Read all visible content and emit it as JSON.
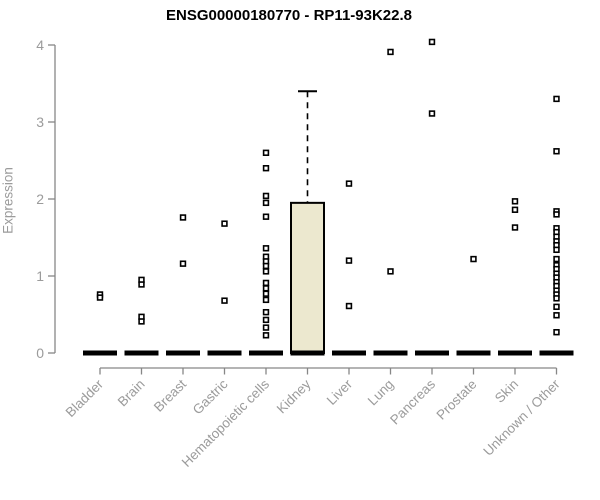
{
  "chart_data": {
    "type": "boxplot-with-points",
    "title": "ENSG00000180770 - RP11-93K22.8",
    "ylabel": "Expression",
    "xlabel": "",
    "ylim": [
      0,
      4
    ],
    "yticks": [
      0,
      1,
      2,
      3,
      4
    ],
    "grid": false,
    "legend": "none",
    "categories": [
      "Bladder",
      "Brain",
      "Breast",
      "Gastric",
      "Hematopoietic cells",
      "Kidney",
      "Liver",
      "Lung",
      "Pancreas",
      "Prostate",
      "Skin",
      "Unknown / Other"
    ],
    "boxes": [
      {
        "label": "Bladder",
        "q1": 0,
        "median": 0,
        "q3": 0,
        "whisker_low": 0,
        "whisker_high": 0
      },
      {
        "label": "Brain",
        "q1": 0,
        "median": 0,
        "q3": 0,
        "whisker_low": 0,
        "whisker_high": 0
      },
      {
        "label": "Breast",
        "q1": 0,
        "median": 0,
        "q3": 0,
        "whisker_low": 0,
        "whisker_high": 0
      },
      {
        "label": "Gastric",
        "q1": 0,
        "median": 0,
        "q3": 0,
        "whisker_low": 0,
        "whisker_high": 0
      },
      {
        "label": "Hematopoietic cells",
        "q1": 0,
        "median": 0,
        "q3": 0,
        "whisker_low": 0,
        "whisker_high": 0
      },
      {
        "label": "Kidney",
        "q1": 0,
        "median": 0,
        "q3": 1.95,
        "whisker_low": 0,
        "whisker_high": 3.4
      },
      {
        "label": "Liver",
        "q1": 0,
        "median": 0,
        "q3": 0,
        "whisker_low": 0,
        "whisker_high": 0
      },
      {
        "label": "Lung",
        "q1": 0,
        "median": 0,
        "q3": 0,
        "whisker_low": 0,
        "whisker_high": 0
      },
      {
        "label": "Pancreas",
        "q1": 0,
        "median": 0,
        "q3": 0,
        "whisker_low": 0,
        "whisker_high": 0
      },
      {
        "label": "Prostate",
        "q1": 0,
        "median": 0,
        "q3": 0,
        "whisker_low": 0,
        "whisker_high": 0
      },
      {
        "label": "Skin",
        "q1": 0,
        "median": 0,
        "q3": 0,
        "whisker_low": 0,
        "whisker_high": 0
      },
      {
        "label": "Unknown / Other",
        "q1": 0,
        "median": 0,
        "q3": 0,
        "whisker_low": 0,
        "whisker_high": 0
      }
    ],
    "points": [
      [
        0.76,
        0.72
      ],
      [
        0.95,
        0.89,
        0.47,
        0.41
      ],
      [
        1.76,
        1.16
      ],
      [
        1.68,
        0.68
      ],
      [
        2.6,
        2.4,
        2.04,
        1.95,
        1.77,
        1.36,
        1.25,
        1.19,
        1.13,
        1.06,
        0.91,
        0.84,
        0.77,
        0.69,
        0.53,
        0.43,
        0.33,
        0.23
      ],
      [],
      [
        2.2,
        1.2,
        0.61
      ],
      [
        3.91,
        1.06
      ],
      [
        4.04,
        3.11
      ],
      [
        1.22
      ],
      [
        1.97,
        1.86,
        1.63
      ],
      [
        3.3,
        2.62,
        1.84,
        1.8,
        1.62,
        1.57,
        1.51,
        1.45,
        1.4,
        1.34,
        1.22,
        1.14,
        1.09,
        1.03,
        0.98,
        0.92,
        0.87,
        0.81,
        0.76,
        0.71,
        0.6,
        0.49,
        0.27
      ]
    ],
    "colors": {
      "box_fill": "#ece8cf",
      "box_border": "#000000",
      "median": "#000000",
      "point": "#000000",
      "axis_line": "#878787",
      "axis_text": "#9b9b9b",
      "title_text": "#000000",
      "background": "#ffffff"
    }
  }
}
